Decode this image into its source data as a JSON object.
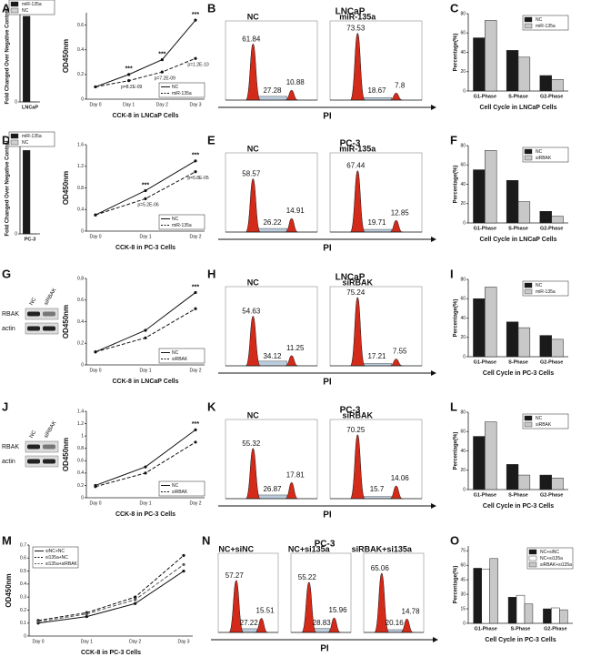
{
  "chart_data": [
    {
      "type": "bar",
      "panel": "A",
      "ylabel": "Fold Changed Over Negative Control",
      "categories": [
        "LNCaP"
      ],
      "series": [
        {
          "name": "miR-135a",
          "color": "#1a1a1a",
          "values": [
            16000
          ]
        },
        {
          "name": "NC",
          "color": "#d0d0d0",
          "values": [
            1
          ]
        }
      ],
      "ylim": [
        0,
        17000
      ],
      "yticks": [
        0,
        17000
      ],
      "legend": "upper left"
    },
    {
      "type": "line",
      "ylabel": "OD450nm",
      "xlabel": "CCK-8 in LNCaP Cells",
      "categories": [
        "Day 0",
        "Day 1",
        "Day 2",
        "Day 3"
      ],
      "series": [
        {
          "name": "NC",
          "color": "#111",
          "dash": false,
          "values": [
            0.1,
            0.2,
            0.32,
            0.64
          ]
        },
        {
          "name": "miR-135a",
          "color": "#111",
          "dash": true,
          "values": [
            0.1,
            0.15,
            0.22,
            0.33
          ]
        }
      ],
      "ylim": [
        0,
        0.7
      ],
      "yticks": [
        0,
        0.2,
        0.4,
        0.6
      ],
      "stars": [
        null,
        "***",
        "***",
        "***"
      ],
      "p_values": [
        null,
        "p=8.2E-09",
        "p=7.2E-09",
        "p=1.2E-10"
      ],
      "legend": "lower right"
    },
    {
      "type": "flow",
      "panel": "B",
      "title": "LNCaP",
      "xlabel": "PI",
      "plots": [
        {
          "name": "NC",
          "g1": 61.84,
          "s": 27.28,
          "g2": 10.88
        },
        {
          "name": "miR-135a",
          "g1": 73.53,
          "s": 18.67,
          "g2": 7.8
        }
      ]
    },
    {
      "type": "bar",
      "panel": "C",
      "ylabel": "Percentage(%)",
      "xlabel": "Cell Cycle in LNCaP Cells",
      "categories": [
        "G1-Phase",
        "S-Phase",
        "G2-Phase"
      ],
      "series": [
        {
          "name": "NC",
          "color": "#1a1a1a",
          "values": [
            55,
            42,
            16
          ]
        },
        {
          "name": "miR-135a",
          "color": "#c8c8c8",
          "values": [
            73,
            35,
            12
          ]
        }
      ],
      "ylim": [
        0,
        80
      ],
      "yticks": [
        0,
        20,
        40,
        60,
        80
      ],
      "legend": "upper right"
    },
    {
      "type": "bar",
      "panel": "D",
      "ylabel": "Fold Changed Over Negative Control",
      "categories": [
        "PC-3"
      ],
      "series": [
        {
          "name": "miR-135a",
          "color": "#1a1a1a",
          "values": [
            3300
          ]
        },
        {
          "name": "NC",
          "color": "#d0d0d0",
          "values": [
            1
          ]
        }
      ],
      "ylim": [
        0,
        3600
      ],
      "yticks": [
        0,
        3600
      ],
      "legend": "upper left"
    },
    {
      "type": "line",
      "ylabel": "OD450nm",
      "xlabel": "CCK-8 in PC-3 Cells",
      "categories": [
        "Day 0",
        "Day 1",
        "Day 2"
      ],
      "series": [
        {
          "name": "NC",
          "color": "#111",
          "dash": false,
          "values": [
            0.3,
            0.75,
            1.3
          ]
        },
        {
          "name": "miR-135a",
          "color": "#111",
          "dash": true,
          "values": [
            0.3,
            0.6,
            1.1
          ]
        }
      ],
      "ylim": [
        0,
        1.6
      ],
      "yticks": [
        0,
        0.4,
        0.8,
        1.2,
        1.6
      ],
      "stars": [
        null,
        "***",
        "***"
      ],
      "p_values": [
        null,
        "p=5.2E-06",
        "p=5.8E-05"
      ],
      "legend": "lower right"
    },
    {
      "type": "flow",
      "panel": "E",
      "title": "PC-3",
      "xlabel": "PI",
      "plots": [
        {
          "name": "NC",
          "g1": 58.57,
          "s": 26.22,
          "g2": 14.91
        },
        {
          "name": "miR-135a",
          "g1": 67.44,
          "s": 19.71,
          "g2": 12.85
        }
      ]
    },
    {
      "type": "bar",
      "panel": "F",
      "ylabel": "Percentage(%)",
      "xlabel": "Cell Cycle in LNCaP Cells",
      "categories": [
        "G1-Phase",
        "S-Phase",
        "G2-Phase"
      ],
      "series": [
        {
          "name": "NC",
          "color": "#1a1a1a",
          "values": [
            55,
            44,
            12
          ]
        },
        {
          "name": "siRBAK",
          "color": "#c8c8c8",
          "values": [
            75,
            22,
            7
          ]
        }
      ],
      "ylim": [
        0,
        80
      ],
      "yticks": [
        0,
        20,
        40,
        60,
        80
      ],
      "legend": "upper right"
    },
    {
      "type": "blot",
      "panel": "G",
      "lanes": [
        "NC",
        "siRBAK"
      ],
      "rows": [
        "RBAK",
        "actin"
      ]
    },
    {
      "type": "line",
      "ylabel": "OD450nm",
      "xlabel": "CCK-8 in LNCaP Cells",
      "categories": [
        "Day 0",
        "Day 1",
        "Day 2"
      ],
      "series": [
        {
          "name": "NC",
          "color": "#111",
          "dash": false,
          "values": [
            0.12,
            0.32,
            0.67
          ]
        },
        {
          "name": "siRBAK",
          "color": "#111",
          "dash": true,
          "values": [
            0.12,
            0.25,
            0.52
          ]
        }
      ],
      "ylim": [
        0,
        0.8
      ],
      "yticks": [
        0,
        0.2,
        0.4,
        0.6,
        0.8
      ],
      "stars": [
        null,
        null,
        "***"
      ],
      "legend": "lower right"
    },
    {
      "type": "flow",
      "panel": "H",
      "title": "LNCaP",
      "xlabel": "PI",
      "plots": [
        {
          "name": "NC",
          "g1": 54.63,
          "s": 34.12,
          "g2": 11.25
        },
        {
          "name": "siRBAK",
          "g1": 75.24,
          "s": 17.21,
          "g2": 7.55
        }
      ]
    },
    {
      "type": "bar",
      "panel": "I",
      "ylabel": "Percentage(%)",
      "xlabel": "Cell Cycle in PC-3 Cells",
      "categories": [
        "G1-Phase",
        "S-Phase",
        "G2-Phase"
      ],
      "series": [
        {
          "name": "NC",
          "color": "#1a1a1a",
          "values": [
            60,
            36,
            22
          ]
        },
        {
          "name": "miR-135a",
          "color": "#c8c8c8",
          "values": [
            72,
            30,
            18
          ]
        }
      ],
      "ylim": [
        0,
        80
      ],
      "yticks": [
        0,
        20,
        40,
        60,
        80
      ],
      "legend": "upper right"
    },
    {
      "type": "blot",
      "panel": "J",
      "lanes": [
        "NC",
        "siRBAK"
      ],
      "rows": [
        "RBAK",
        "actin"
      ]
    },
    {
      "type": "line",
      "ylabel": "OD450nm",
      "xlabel": "CCK-8 in PC-3 Cells",
      "categories": [
        "Day 0",
        "Day 1",
        "Day 2"
      ],
      "series": [
        {
          "name": "NC",
          "color": "#111",
          "dash": false,
          "values": [
            0.2,
            0.5,
            1.1
          ]
        },
        {
          "name": "siRBAK",
          "color": "#111",
          "dash": true,
          "values": [
            0.18,
            0.4,
            0.9
          ]
        }
      ],
      "ylim": [
        0,
        1.4
      ],
      "yticks": [
        0,
        0.2,
        0.4,
        0.6,
        0.8,
        1,
        1.2,
        1.4
      ],
      "stars": [
        null,
        null,
        "***"
      ],
      "legend": "lower right"
    },
    {
      "type": "flow",
      "panel": "K",
      "title": "PC-3",
      "xlabel": "PI",
      "plots": [
        {
          "name": "NC",
          "g1": 55.32,
          "s": 26.87,
          "g2": 17.81
        },
        {
          "name": "siRBAK",
          "g1": 70.25,
          "s": 15.7,
          "g2": 14.06
        }
      ]
    },
    {
      "type": "bar",
      "panel": "L",
      "ylabel": "Percentage(%)",
      "xlabel": "Cell Cycle in PC-3 Cells",
      "categories": [
        "G1-Phase",
        "S-Phase",
        "G2-Phase"
      ],
      "series": [
        {
          "name": "NC",
          "color": "#1a1a1a",
          "values": [
            55,
            26,
            15
          ]
        },
        {
          "name": "siRBAK",
          "color": "#c8c8c8",
          "values": [
            70,
            15,
            12
          ]
        }
      ],
      "ylim": [
        0,
        80
      ],
      "yticks": [
        0,
        20,
        40,
        60,
        80
      ],
      "legend": "upper right"
    },
    {
      "type": "line",
      "panel": "M",
      "ylabel": "OD450nm",
      "xlabel": "CCK-8 in PC-3 Cells",
      "categories": [
        "Day 0",
        "Day 1",
        "Day 2",
        "Day 3"
      ],
      "series": [
        {
          "name": "siNC+NC",
          "color": "#111",
          "dash": false,
          "values": [
            0.1,
            0.15,
            0.25,
            0.5
          ]
        },
        {
          "name": "si135a+NC",
          "color": "#111",
          "dash": true,
          "values": [
            0.12,
            0.18,
            0.3,
            0.62
          ]
        },
        {
          "name": "si135a+siRBAK",
          "color": "#555",
          "dash": true,
          "values": [
            0.11,
            0.17,
            0.28,
            0.55
          ]
        }
      ],
      "ylim": [
        0,
        0.7
      ],
      "yticks": [
        0,
        0.1,
        0.2,
        0.3,
        0.4,
        0.5,
        0.6,
        0.7
      ],
      "legend": "upper left"
    },
    {
      "type": "flow",
      "panel": "N",
      "title": "PC-3",
      "xlabel": "PI",
      "plots": [
        {
          "name": "NC+siNC",
          "g1": 57.27,
          "s": 27.22,
          "g2": 15.51
        },
        {
          "name": "NC+si135a",
          "g1": 55.22,
          "s": 28.83,
          "g2": 15.96
        },
        {
          "name": "siRBAK+si135a",
          "g1": 65.06,
          "s": 20.16,
          "g2": 14.78
        }
      ]
    },
    {
      "type": "bar",
      "panel": "O",
      "ylabel": "Percentage(%)",
      "xlabel": "Cell Cycle in PC-3 Cells",
      "categories": [
        "G1-Phase",
        "S-Phase",
        "G2-Phase"
      ],
      "series": [
        {
          "name": "NC+siNC",
          "color": "#1a1a1a",
          "values": [
            57,
            27,
            15
          ]
        },
        {
          "name": "NC+si135a",
          "color": "#ffffff",
          "values": [
            56,
            29,
            16
          ]
        },
        {
          "name": "siRBAK+si135a",
          "color": "#c8c8c8",
          "values": [
            67,
            20,
            14
          ]
        }
      ],
      "ylim": [
        0,
        80
      ],
      "yticks": [
        0,
        15,
        30,
        45,
        60,
        75
      ],
      "legend": "upper right"
    }
  ]
}
